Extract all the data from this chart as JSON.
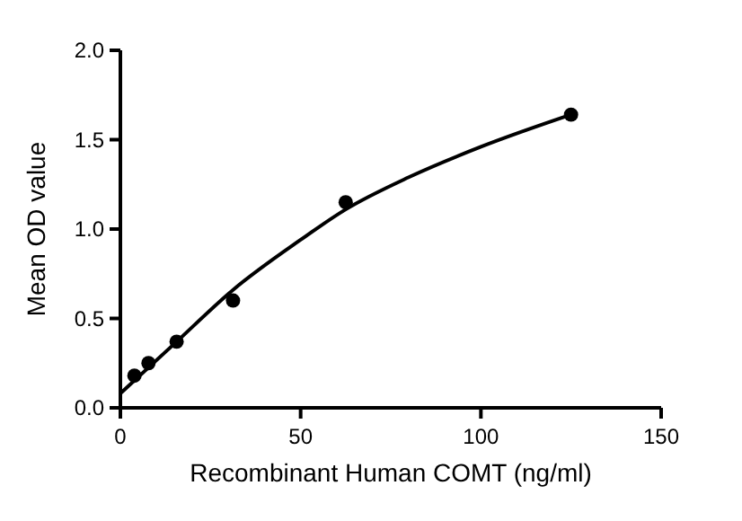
{
  "chart_data": {
    "type": "scatter",
    "xlabel": "Recombinant Human COMT (ng/ml)",
    "ylabel": "Mean OD value",
    "xlim": [
      0,
      150
    ],
    "xticks": [
      0,
      50,
      100,
      150
    ],
    "ylim": [
      0,
      2
    ],
    "yticks": [
      {
        "value": 0,
        "label": "0.0"
      },
      {
        "value": 0.5,
        "label": "0.5"
      },
      {
        "value": 1,
        "label": "1.0"
      },
      {
        "value": 1.5,
        "label": "1.5"
      },
      {
        "value": 2,
        "label": "2.0"
      }
    ],
    "grid": false,
    "series": [
      {
        "marker": "circle",
        "color": "#000000",
        "x": [
          3.9,
          7.8,
          15.6,
          31.25,
          62.5,
          125
        ],
        "values": [
          0.18,
          0.25,
          0.37,
          0.6,
          1.15,
          1.64
        ]
      },
      {
        "type": "line",
        "color": "#000000",
        "x": [
          0,
          15.6,
          31.25,
          50,
          62.5,
          80,
          100,
          125
        ],
        "values": [
          0.08,
          0.37,
          0.66,
          0.94,
          1.11,
          1.29,
          1.46,
          1.64
        ]
      }
    ]
  }
}
